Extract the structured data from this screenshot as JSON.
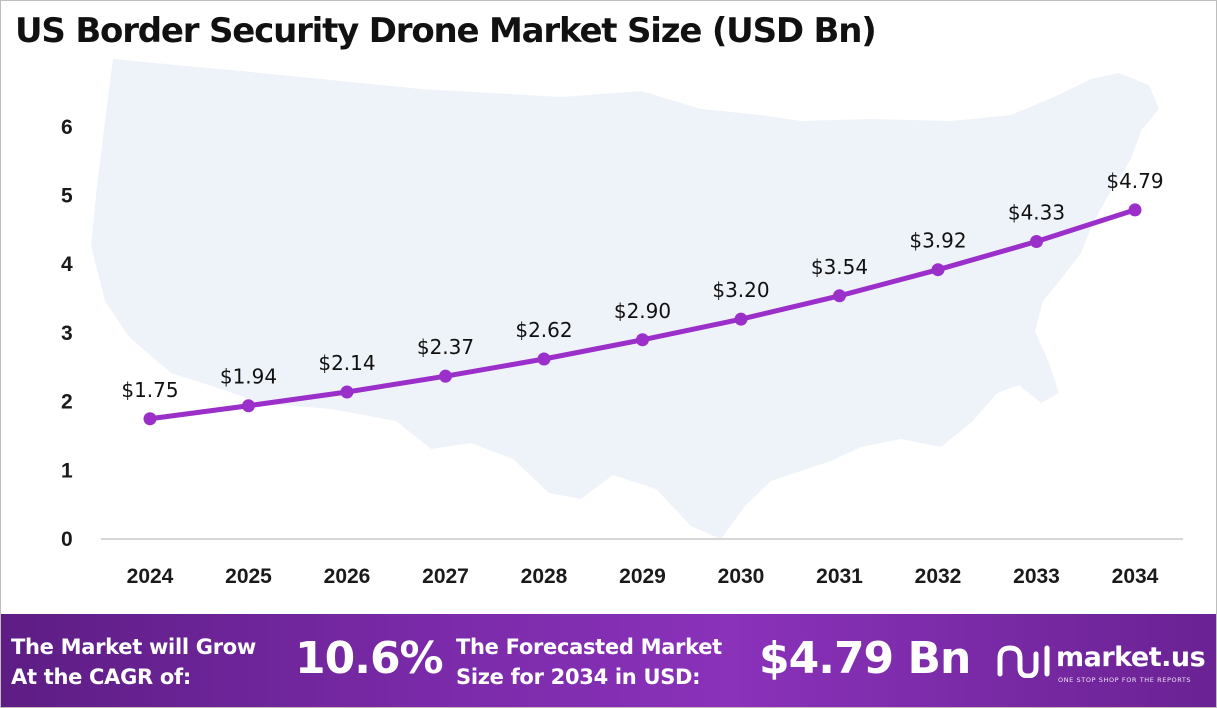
{
  "chart_data": {
    "type": "line",
    "title": "US Border Security Drone Market Size (USD Bn)",
    "x": [
      "2024",
      "2025",
      "2026",
      "2027",
      "2028",
      "2029",
      "2030",
      "2031",
      "2032",
      "2033",
      "2034"
    ],
    "series": [
      {
        "values": [
          1.75,
          1.94,
          2.14,
          2.37,
          2.62,
          2.9,
          3.2,
          3.54,
          3.92,
          4.33,
          4.79
        ],
        "data_labels": [
          "$1.75",
          "$1.94",
          "$2.14",
          "$2.37",
          "$2.62",
          "$2.90",
          "$3.20",
          "$3.54",
          "$3.92",
          "$4.33",
          "$4.79"
        ],
        "color": "#9b2fc9"
      }
    ],
    "yticks": [
      "0",
      "1",
      "2",
      "3",
      "4",
      "5",
      "6"
    ],
    "ylim": [
      0,
      6
    ],
    "grid": false,
    "background": "faint US map silhouette",
    "colors": {
      "line": "#9b2fc9",
      "background_map": "#eef3fa"
    }
  },
  "footer": {
    "cagr_label_line1": "The Market will Grow",
    "cagr_label_line2": "At the CAGR of:",
    "cagr_value": "10.6%",
    "forecast_label_line1": "The Forecasted Market",
    "forecast_label_line2": "Size for 2034 in USD:",
    "forecast_value": "$4.79 Bn",
    "brand_name": "market.us",
    "brand_tagline": "ONE STOP SHOP FOR THE REPORTS",
    "brand_icon": "market-us-logo-icon",
    "colors": {
      "gradient_start": "#5d1d84",
      "gradient_mid": "#8a32ba",
      "gradient_end": "#6a2293",
      "text": "#ffffff"
    }
  }
}
